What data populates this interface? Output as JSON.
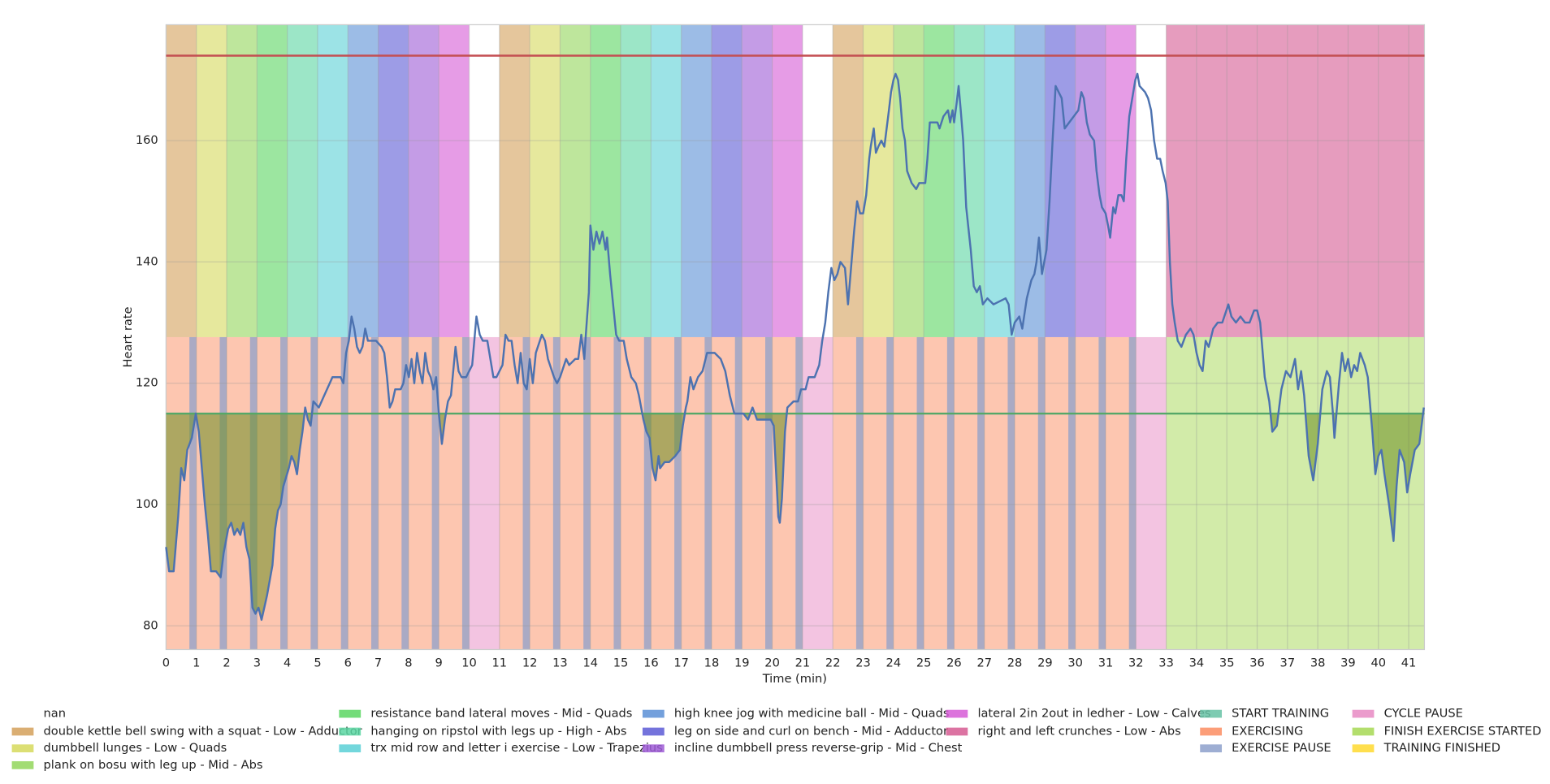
{
  "chart_data": {
    "type": "line",
    "xlabel": "Time (min)",
    "ylabel": "Heart rate",
    "xlim": [
      0,
      41.52
    ],
    "ylim": [
      76.1,
      179.1
    ],
    "xticks": [
      0,
      1,
      2,
      3,
      4,
      5,
      6,
      7,
      8,
      9,
      10,
      11,
      12,
      13,
      14,
      15,
      16,
      17,
      18,
      19,
      20,
      21,
      22,
      23,
      24,
      25,
      26,
      27,
      28,
      29,
      30,
      31,
      32,
      33,
      34,
      35,
      36,
      37,
      38,
      39,
      40,
      41
    ],
    "yticks": [
      80,
      100,
      120,
      140,
      160
    ],
    "grid": true,
    "band_split": 127.6,
    "x": [
      0,
      0.1,
      0.25,
      0.4,
      0.5,
      0.6,
      0.7,
      0.85,
      0.98,
      1.08,
      1.18,
      1.28,
      1.38,
      1.48,
      1.65,
      1.8,
      1.9,
      2.05,
      2.15,
      2.25,
      2.35,
      2.45,
      2.55,
      2.65,
      2.75,
      2.85,
      2.95,
      3.05,
      3.15,
      3.24,
      3.33,
      3.51,
      3.6,
      3.69,
      3.78,
      3.87,
      4.05,
      4.14,
      4.23,
      4.32,
      4.41,
      4.5,
      4.59,
      4.68,
      4.77,
      4.86,
      5.04,
      5.22,
      5.4,
      5.49,
      5.76,
      5.85,
      5.94,
      6.03,
      6.12,
      6.21,
      6.3,
      6.39,
      6.48,
      6.57,
      6.66,
      6.93,
      7.11,
      7.2,
      7.29,
      7.38,
      7.47,
      7.56,
      7.74,
      7.83,
      7.92,
      8.01,
      8.1,
      8.19,
      8.28,
      8.37,
      8.46,
      8.55,
      8.64,
      8.73,
      8.82,
      8.91,
      9.0,
      9.1,
      9.2,
      9.3,
      9.4,
      9.55,
      9.65,
      9.75,
      9.9,
      10.1,
      10.24,
      10.35,
      10.45,
      10.6,
      10.8,
      10.9,
      11.0,
      11.1,
      11.2,
      11.3,
      11.4,
      11.5,
      11.6,
      11.7,
      11.8,
      11.9,
      12.0,
      12.1,
      12.2,
      12.4,
      12.5,
      12.6,
      12.8,
      12.9,
      13.0,
      13.2,
      13.3,
      13.5,
      13.6,
      13.7,
      13.8,
      13.85,
      13.95,
      14.0,
      14.1,
      14.2,
      14.3,
      14.4,
      14.5,
      14.55,
      14.65,
      14.75,
      14.85,
      14.95,
      15.1,
      15.2,
      15.35,
      15.5,
      15.6,
      15.75,
      15.85,
      15.95,
      16.05,
      16.15,
      16.25,
      16.3,
      16.45,
      16.6,
      16.8,
      16.95,
      17.05,
      17.15,
      17.2,
      17.3,
      17.4,
      17.55,
      17.7,
      17.85,
      18.1,
      18.3,
      18.45,
      18.6,
      18.75,
      18.9,
      19.05,
      19.2,
      19.35,
      19.5,
      19.65,
      19.95,
      20.05,
      20.12,
      20.2,
      20.25,
      20.32,
      20.42,
      20.5,
      20.7,
      20.85,
      20.95,
      21.1,
      21.2,
      21.4,
      21.55,
      21.65,
      21.75,
      21.85,
      21.95,
      22.05,
      22.15,
      22.25,
      22.4,
      22.45,
      22.5,
      22.6,
      22.7,
      22.8,
      22.9,
      23.0,
      23.1,
      23.2,
      23.25,
      23.35,
      23.42,
      23.5,
      23.6,
      23.7,
      23.75,
      23.85,
      23.92,
      24.0,
      24.07,
      24.15,
      24.22,
      24.3,
      24.38,
      24.45,
      24.6,
      24.75,
      24.85,
      25.05,
      25.12,
      25.2,
      25.45,
      25.52,
      25.65,
      25.8,
      25.87,
      25.95,
      26.0,
      26.08,
      26.15,
      26.22,
      26.3,
      26.4,
      26.55,
      26.65,
      26.75,
      26.85,
      26.95,
      27.1,
      27.3,
      27.7,
      27.8,
      27.9,
      28.0,
      28.15,
      28.25,
      28.4,
      28.55,
      28.65,
      28.72,
      28.8,
      28.9,
      29.05,
      29.15,
      29.25,
      29.35,
      29.45,
      29.55,
      29.65,
      29.8,
      29.95,
      30.1,
      30.2,
      30.28,
      30.38,
      30.48,
      30.62,
      30.7,
      30.8,
      30.88,
      31.0,
      31.08,
      31.15,
      31.25,
      31.32,
      31.42,
      31.52,
      31.6,
      31.68,
      31.78,
      31.88,
      31.98,
      32.05,
      32.12,
      32.3,
      32.4,
      32.5,
      32.6,
      32.7,
      32.8,
      32.88,
      32.98,
      33.05,
      33.12,
      33.2,
      33.28,
      33.38,
      33.5,
      33.65,
      33.8,
      33.9,
      34.0,
      34.1,
      34.2,
      34.3,
      34.4,
      34.55,
      34.7,
      34.85,
      35.05,
      35.15,
      35.3,
      35.45,
      35.6,
      35.75,
      35.9,
      36.0,
      36.1,
      36.25,
      36.4,
      36.5,
      36.65,
      36.8,
      36.95,
      37.1,
      37.25,
      37.35,
      37.45,
      37.55,
      37.7,
      37.85,
      38.0,
      38.15,
      38.3,
      38.4,
      38.5,
      38.55,
      38.7,
      38.8,
      38.9,
      39.0,
      39.1,
      39.2,
      39.3,
      39.4,
      39.55,
      39.65,
      39.8,
      39.9,
      40.0,
      40.1,
      40.2,
      40.35,
      40.5,
      40.6,
      40.7,
      40.85,
      40.95,
      41.05,
      41.2,
      41.35,
      41.5
    ],
    "series": [
      {
        "color": "#4c72b0",
        "values": [
          93,
          89,
          89,
          98,
          106,
          104,
          109,
          111,
          115,
          112,
          106,
          100,
          95,
          89,
          89,
          88,
          92,
          96,
          97,
          95,
          96,
          95,
          97,
          93,
          91,
          83,
          82,
          83,
          81,
          83,
          85,
          90,
          96,
          99,
          100,
          103,
          106,
          108,
          107,
          105,
          109,
          112,
          116,
          114,
          113,
          117,
          116,
          118,
          120,
          121,
          121,
          120,
          125,
          127,
          131,
          129,
          126,
          125,
          126,
          129,
          127,
          127,
          126,
          125,
          121,
          116,
          117,
          119,
          119,
          120,
          123,
          121,
          124,
          120,
          125,
          122,
          120,
          125,
          122,
          121,
          119,
          121,
          115,
          110,
          114,
          117,
          118,
          126,
          122,
          121,
          121,
          123,
          131,
          128,
          127,
          127,
          121,
          121,
          122,
          123,
          128,
          127,
          127,
          123,
          120,
          125,
          120,
          119,
          124,
          120,
          125,
          128,
          127,
          124,
          121,
          120,
          121,
          124,
          123,
          124,
          124,
          128,
          124,
          128,
          135,
          146,
          142,
          145,
          143,
          145,
          142,
          144,
          138,
          133,
          128,
          127,
          127,
          124,
          121,
          120,
          118,
          114,
          112,
          111,
          106,
          104,
          108,
          106,
          107,
          107,
          108,
          109,
          113,
          116,
          117,
          121,
          119,
          121,
          122,
          125,
          125,
          124,
          122,
          118,
          115,
          115,
          115,
          114,
          116,
          114,
          114,
          114,
          113,
          106,
          98,
          97,
          101,
          112,
          116,
          117,
          117,
          119,
          119,
          121,
          121,
          123,
          127,
          130,
          135,
          139,
          137,
          138,
          140,
          139,
          136,
          133,
          139,
          145,
          150,
          148,
          148,
          151,
          157,
          159,
          162,
          158,
          159,
          160,
          159,
          161,
          165,
          168,
          170,
          171,
          170,
          167,
          162,
          160,
          155,
          153,
          152,
          153,
          153,
          157,
          163,
          163,
          162,
          164,
          165,
          163,
          165,
          163,
          166,
          169,
          165,
          160,
          149,
          142,
          136,
          135,
          136,
          133,
          134,
          133,
          134,
          133,
          128,
          130,
          131,
          129,
          134,
          137,
          138,
          140,
          144,
          138,
          142,
          150,
          160,
          169,
          168,
          167,
          162,
          163,
          164,
          165,
          168,
          167,
          163,
          161,
          160,
          155,
          151,
          149,
          148,
          146,
          144,
          149,
          148,
          151,
          151,
          150,
          157,
          164,
          167,
          170,
          171,
          169,
          168,
          167,
          165,
          160,
          157,
          157,
          155,
          153,
          150,
          140,
          133,
          130,
          127,
          126,
          128,
          129,
          128,
          125,
          123,
          122,
          127,
          126,
          129,
          130,
          130,
          133,
          131,
          130,
          131,
          130,
          130,
          132,
          132,
          130,
          121,
          117,
          112,
          113,
          119,
          122,
          121,
          124,
          119,
          122,
          118,
          108,
          104,
          110,
          119,
          122,
          121,
          115,
          111,
          120,
          125,
          122,
          124,
          121,
          123,
          122,
          125,
          123,
          121,
          112,
          105,
          108,
          109,
          105,
          100,
          94,
          103,
          109,
          107,
          102,
          105,
          109,
          110,
          116
        ]
      }
    ],
    "hlines": [
      {
        "value": 174,
        "color": "#c44e52"
      },
      {
        "value": 115,
        "color": "#55a868"
      }
    ],
    "fill_below_color": "#6b8e23",
    "exercises": [
      {
        "name": "nan",
        "color": "#ffffff",
        "intervals": [
          [
            10,
            11
          ],
          [
            21,
            22
          ],
          [
            32,
            33
          ]
        ]
      },
      {
        "name": "double kettle bell  swing with a squat - Low -  Adductor",
        "color": "#d4a05a",
        "intervals": [
          [
            0,
            1
          ],
          [
            11,
            12
          ],
          [
            22,
            23
          ]
        ]
      },
      {
        "name": "dumbbell lunges - Low -  Quads",
        "color": "#d6d95c",
        "intervals": [
          [
            1,
            2
          ],
          [
            12,
            13
          ],
          [
            23,
            24
          ]
        ]
      },
      {
        "name": "plank on bosu with leg up - Mid -  Abs",
        "color": "#92d65a",
        "intervals": [
          [
            2,
            3
          ],
          [
            13,
            14
          ],
          [
            24,
            25
          ]
        ]
      },
      {
        "name": "resistance band lateral moves - Mid -  Quads",
        "color": "#5ad661",
        "intervals": [
          [
            3,
            4
          ],
          [
            14,
            15
          ],
          [
            25,
            26
          ]
        ]
      },
      {
        "name": "hanging on ripstol with legs up - High -  Abs",
        "color": "#5ad6a2",
        "intervals": [
          [
            4,
            5
          ],
          [
            15,
            16
          ],
          [
            26,
            27
          ]
        ]
      },
      {
        "name": "trx mid row and letter i exercise - Low -  Trapezius",
        "color": "#5ad0d6",
        "intervals": [
          [
            5,
            6
          ],
          [
            16,
            17
          ],
          [
            27,
            28
          ]
        ]
      },
      {
        "name": "high knee jog with medicine ball - Mid -  Quads",
        "color": "#5a8fd6",
        "intervals": [
          [
            6,
            7
          ],
          [
            17,
            18
          ],
          [
            28,
            29
          ]
        ]
      },
      {
        "name": "leg on side and curl on bench - Mid -  Adductor",
        "color": "#5c5ad6",
        "intervals": [
          [
            7,
            8
          ],
          [
            18,
            19
          ],
          [
            29,
            30
          ]
        ]
      },
      {
        "name": "incline dumbbell press reverse-grip  - Mid -  Chest",
        "color": "#9d5ad6",
        "intervals": [
          [
            8,
            9
          ],
          [
            19,
            20
          ],
          [
            30,
            31
          ]
        ]
      },
      {
        "name": "lateral 2in 2out in ledher - Low -  Calves",
        "color": "#d65ad6",
        "intervals": [
          [
            9,
            10
          ],
          [
            20,
            21
          ],
          [
            31,
            32
          ]
        ]
      },
      {
        "name": "right and left crunches - Low -  Abs",
        "color": "#d65a92",
        "intervals": [
          [
            33,
            41.52
          ]
        ]
      }
    ],
    "phases": [
      {
        "name": "START TRAINING",
        "color": "#66c2a5",
        "intervals": []
      },
      {
        "name": "EXERCISING",
        "color": "#fc8d62",
        "intervals": [
          [
            0,
            10
          ],
          [
            11,
            21
          ],
          [
            22,
            32
          ]
        ]
      },
      {
        "name": "EXERCISE PAUSE",
        "color": "#8da0cb",
        "intervals": [
          [
            0.77,
            1
          ],
          [
            1.77,
            2
          ],
          [
            2.77,
            3
          ],
          [
            3.77,
            4
          ],
          [
            4.77,
            5
          ],
          [
            5.77,
            6
          ],
          [
            6.77,
            7
          ],
          [
            7.77,
            8
          ],
          [
            8.77,
            9
          ],
          [
            9.77,
            10
          ],
          [
            11.77,
            12
          ],
          [
            12.77,
            13
          ],
          [
            13.77,
            14
          ],
          [
            14.77,
            15
          ],
          [
            15.77,
            16
          ],
          [
            16.77,
            17
          ],
          [
            17.77,
            18
          ],
          [
            18.77,
            19
          ],
          [
            19.77,
            20
          ],
          [
            20.77,
            21
          ],
          [
            22.77,
            23
          ],
          [
            23.77,
            24
          ],
          [
            24.77,
            25
          ],
          [
            25.77,
            26
          ],
          [
            26.77,
            27
          ],
          [
            27.77,
            28
          ],
          [
            28.77,
            29
          ],
          [
            29.77,
            30
          ],
          [
            30.77,
            31
          ],
          [
            31.77,
            32
          ]
        ]
      },
      {
        "name": "CYCLE PAUSE",
        "color": "#e78ac3",
        "intervals": [
          [
            10,
            11
          ],
          [
            21,
            22
          ],
          [
            32,
            33
          ]
        ]
      },
      {
        "name": "FINISH EXERCISE STARTED",
        "color": "#a6d854",
        "intervals": [
          [
            33,
            41.52
          ]
        ]
      },
      {
        "name": "TRAINING FINISHED",
        "color": "#ffd92f",
        "intervals": []
      }
    ]
  }
}
